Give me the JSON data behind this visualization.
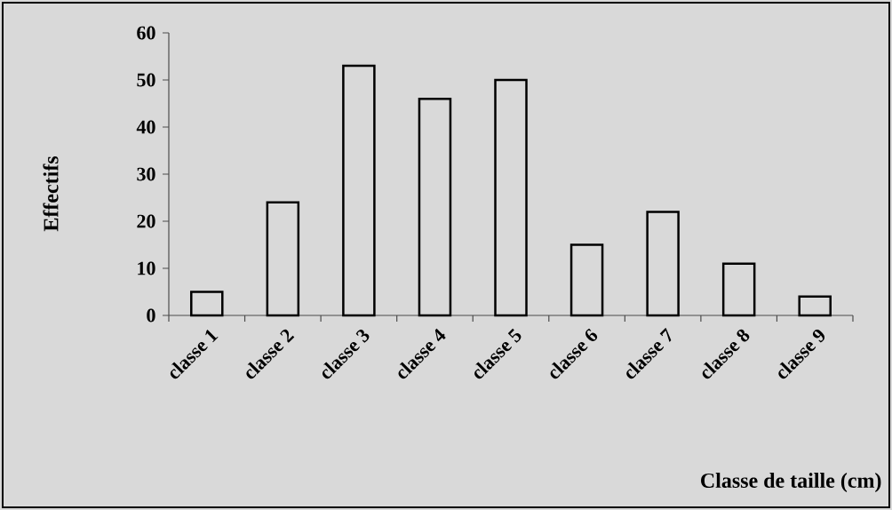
{
  "chart_data": {
    "type": "bar",
    "xlabel": "Classe de taille (cm)",
    "ylabel": "Effectifs",
    "categories": [
      "classe 1",
      "classe 2",
      "classe 3",
      "classe 4",
      "classe 5",
      "classe 6",
      "classe 7",
      "classe 8",
      "classe 9"
    ],
    "values": [
      5,
      24,
      53,
      46,
      50,
      15,
      22,
      11,
      4
    ],
    "color": "#d9d9d9",
    "ylim": [
      0,
      60
    ],
    "yticks": [
      0,
      10,
      20,
      30,
      40,
      50,
      60
    ],
    "grid": false
  }
}
